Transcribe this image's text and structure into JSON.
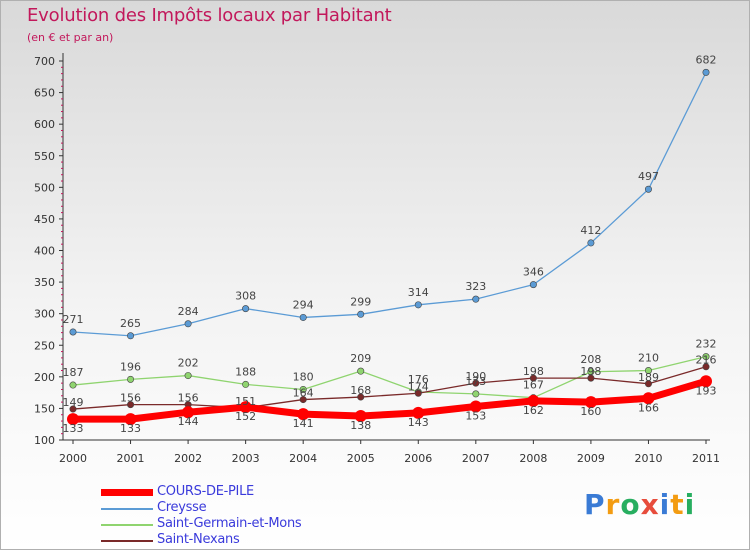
{
  "header": {
    "title": "Evolution des Impôts locaux par Habitant",
    "subtitle": "(en € et par an)"
  },
  "logo": {
    "text": "Proxiti"
  },
  "chart_data": {
    "type": "line",
    "title": "Evolution des Impôts locaux par Habitant",
    "subtitle": "(en € et par an)",
    "xlabel": "",
    "ylabel": "",
    "x": [
      "2000",
      "2001",
      "2002",
      "2003",
      "2004",
      "2005",
      "2006",
      "2007",
      "2008",
      "2009",
      "2010",
      "2011"
    ],
    "ylim": [
      100,
      700
    ],
    "yticks": [
      100,
      150,
      200,
      250,
      300,
      350,
      400,
      450,
      500,
      550,
      600,
      650,
      700
    ],
    "grid": false,
    "legend_position": "bottom-left",
    "series": [
      {
        "name": "COURS-DE-PILE",
        "color": "#ff0000",
        "values": [
          133,
          133,
          144,
          152,
          141,
          138,
          143,
          153,
          162,
          160,
          166,
          193
        ]
      },
      {
        "name": "Creysse",
        "color": "#5b9bd5",
        "values": [
          271,
          265,
          284,
          308,
          294,
          299,
          314,
          323,
          346,
          412,
          497,
          682
        ]
      },
      {
        "name": "Saint-Germain-et-Mons",
        "color": "#8fd46f",
        "values": [
          187,
          196,
          202,
          188,
          180,
          209,
          176,
          173,
          167,
          208,
          210,
          232
        ]
      },
      {
        "name": "Saint-Nexans",
        "color": "#7a2a2a",
        "values": [
          149,
          156,
          156,
          151,
          164,
          168,
          174,
          190,
          198,
          198,
          189,
          216
        ]
      }
    ]
  }
}
